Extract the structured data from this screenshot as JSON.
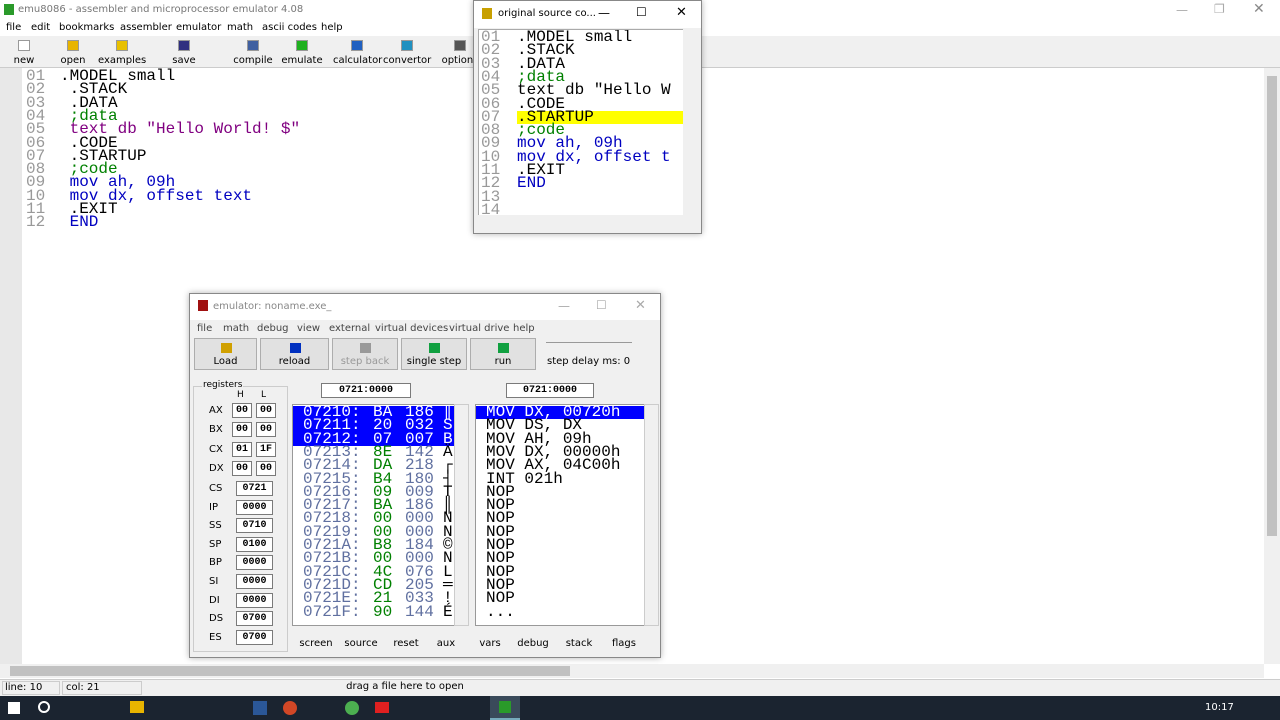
{
  "main_window": {
    "title": "emu8086 - assembler and microprocessor emulator 4.08",
    "menu": [
      "file",
      "edit",
      "bookmarks",
      "assembler",
      "emulator",
      "math",
      "ascii codes",
      "help"
    ],
    "toolbar": [
      "new",
      "open",
      "examples",
      "save",
      "compile",
      "emulate",
      "calculator",
      "convertor",
      "options"
    ],
    "editor_lines": [
      {
        "number": "01",
        "text": ".MODEL small",
        "color": "#000000"
      },
      {
        "number": "02",
        "text": " .STACK",
        "color": "#000000"
      },
      {
        "number": "03",
        "text": " .DATA",
        "color": "#000000"
      },
      {
        "number": "04",
        "text": " ;data",
        "color": "#008000"
      },
      {
        "number": "05",
        "text": " text db \"Hello World! $\"",
        "color": "#800080"
      },
      {
        "number": "06",
        "text": " .CODE",
        "color": "#000000"
      },
      {
        "number": "07",
        "text": " .STARTUP",
        "color": "#000000"
      },
      {
        "number": "08",
        "text": " ;code",
        "color": "#008000"
      },
      {
        "number": "09",
        "text": " mov ah, 09h",
        "color": "#0000c0"
      },
      {
        "number": "10",
        "text": " mov dx, offset text",
        "color": "#0000c0"
      },
      {
        "number": "11",
        "text": " .EXIT",
        "color": "#000000"
      },
      {
        "number": "12",
        "text": " END",
        "color": "#0000c0"
      }
    ],
    "status": {
      "line": "line: 10",
      "col": "col: 21",
      "hint": "drag a file here to open"
    }
  },
  "source_window": {
    "title": "original source co...",
    "lines": [
      {
        "number": "01",
        "text": ".MODEL small",
        "color": "#000000",
        "highlighted": false
      },
      {
        "number": "02",
        "text": ".STACK",
        "color": "#000000",
        "highlighted": false
      },
      {
        "number": "03",
        "text": ".DATA",
        "color": "#000000",
        "highlighted": false
      },
      {
        "number": "04",
        "text": ";data",
        "color": "#008000",
        "highlighted": false
      },
      {
        "number": "05",
        "text": "text db \"Hello W",
        "color": "#000000",
        "highlighted": false
      },
      {
        "number": "06",
        "text": ".CODE",
        "color": "#000000",
        "highlighted": false
      },
      {
        "number": "07",
        "text": ".STARTUP",
        "color": "#000000",
        "highlighted": true
      },
      {
        "number": "08",
        "text": ";code",
        "color": "#008000",
        "highlighted": false
      },
      {
        "number": "09",
        "text": "mov ah, 09h",
        "color": "#0000c0",
        "highlighted": false
      },
      {
        "number": "10",
        "text": "mov dx, offset t",
        "color": "#0000c0",
        "highlighted": false
      },
      {
        "number": "11",
        "text": ".EXIT",
        "color": "#000000",
        "highlighted": false
      },
      {
        "number": "12",
        "text": "END",
        "color": "#0000c0",
        "highlighted": false
      },
      {
        "number": "13",
        "text": null,
        "color": "#000000",
        "highlighted": false
      },
      {
        "number": "14",
        "text": null,
        "color": "#000000",
        "highlighted": false
      }
    ]
  },
  "emulator": {
    "title": "emulator: noname.exe_",
    "menu": [
      "file",
      "math",
      "debug",
      "view",
      "external",
      "virtual devices",
      "virtual drive",
      "help"
    ],
    "buttons": [
      "Load",
      "reload",
      "step back",
      "single step",
      "run"
    ],
    "step_delay": "step delay ms: 0",
    "registers_label": "registers",
    "h_label": "H",
    "l_label": "L",
    "split_registers": [
      {
        "name": "AX",
        "h": "00",
        "l": "00"
      },
      {
        "name": "BX",
        "h": "00",
        "l": "00"
      },
      {
        "name": "CX",
        "h": "01",
        "l": "1F"
      },
      {
        "name": "DX",
        "h": "00",
        "l": "00"
      }
    ],
    "registers": [
      {
        "name": "CS",
        "value": "0721"
      },
      {
        "name": "IP",
        "value": "0000"
      },
      {
        "name": "SS",
        "value": "0710"
      },
      {
        "name": "SP",
        "value": "0100"
      },
      {
        "name": "BP",
        "value": "0000"
      },
      {
        "name": "SI",
        "value": "0000"
      },
      {
        "name": "DI",
        "value": "0000"
      },
      {
        "name": "DS",
        "value": "0700"
      },
      {
        "name": "ES",
        "value": "0700"
      }
    ],
    "address_left": "0721:0000",
    "address_right": "0721:0000",
    "memory": [
      {
        "addr": "07210:",
        "hex": "BA",
        "dec": "186",
        "char": "║",
        "selected": true
      },
      {
        "addr": "07211:",
        "hex": "20",
        "dec": "032",
        "char": "S",
        "selected": true
      },
      {
        "addr": "07212:",
        "hex": "07",
        "dec": "007",
        "char": "B",
        "selected": true
      },
      {
        "addr": "07213:",
        "hex": "8E",
        "dec": "142",
        "char": "Ä",
        "selected": false
      },
      {
        "addr": "07214:",
        "hex": "DA",
        "dec": "218",
        "char": "┌",
        "selected": false
      },
      {
        "addr": "07215:",
        "hex": "B4",
        "dec": "180",
        "char": "┤",
        "selected": false
      },
      {
        "addr": "07216:",
        "hex": "09",
        "dec": "009",
        "char": "T",
        "selected": false
      },
      {
        "addr": "07217:",
        "hex": "BA",
        "dec": "186",
        "char": "║",
        "selected": false
      },
      {
        "addr": "07218:",
        "hex": "00",
        "dec": "000",
        "char": "N",
        "selected": false
      },
      {
        "addr": "07219:",
        "hex": "00",
        "dec": "000",
        "char": "N",
        "selected": false
      },
      {
        "addr": "0721A:",
        "hex": "B8",
        "dec": "184",
        "char": "©",
        "selected": false
      },
      {
        "addr": "0721B:",
        "hex": "00",
        "dec": "000",
        "char": "N",
        "selected": false
      },
      {
        "addr": "0721C:",
        "hex": "4C",
        "dec": "076",
        "char": "L",
        "selected": false
      },
      {
        "addr": "0721D:",
        "hex": "CD",
        "dec": "205",
        "char": "═",
        "selected": false
      },
      {
        "addr": "0721E:",
        "hex": "21",
        "dec": "033",
        "char": "!",
        "selected": false
      },
      {
        "addr": "0721F:",
        "hex": "90",
        "dec": "144",
        "char": "É",
        "selected": false
      }
    ],
    "disassembly": [
      {
        "text": "MOV DX, 00720h",
        "selected": true
      },
      {
        "text": "MOV DS, DX",
        "selected": false
      },
      {
        "text": "MOV AH, 09h",
        "selected": false
      },
      {
        "text": "MOV DX, 00000h",
        "selected": false
      },
      {
        "text": "MOV AX, 04C00h",
        "selected": false
      },
      {
        "text": "INT 021h",
        "selected": false
      },
      {
        "text": "NOP",
        "selected": false
      },
      {
        "text": "NOP",
        "selected": false
      },
      {
        "text": "NOP",
        "selected": false
      },
      {
        "text": "NOP",
        "selected": false
      },
      {
        "text": "NOP",
        "selected": false
      },
      {
        "text": "NOP",
        "selected": false
      },
      {
        "text": "NOP",
        "selected": false
      },
      {
        "text": "NOP",
        "selected": false
      },
      {
        "text": "NOP",
        "selected": false
      },
      {
        "text": "...",
        "selected": false
      }
    ],
    "bottom_buttons": [
      "screen",
      "source",
      "reset",
      "aux",
      "vars",
      "debug",
      "stack",
      "flags"
    ]
  },
  "taskbar": {
    "time": "10:17"
  }
}
